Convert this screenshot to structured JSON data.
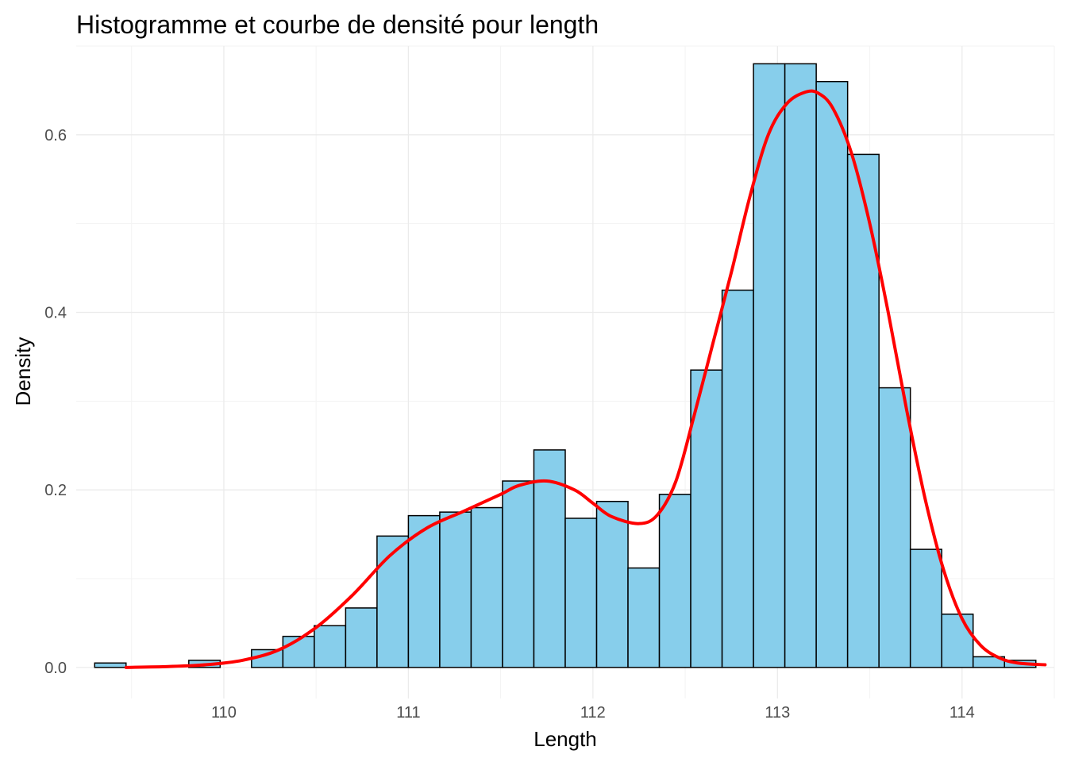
{
  "chart_data": {
    "type": "histogram",
    "title": "Histogramme et courbe de densité pour length",
    "xlabel": "Length",
    "ylabel": "Density",
    "xlim": [
      109.2,
      114.5
    ],
    "ylim": [
      -0.035,
      0.7
    ],
    "x_ticks": [
      110,
      111,
      112,
      113,
      114
    ],
    "x_tick_labels": [
      "110",
      "111",
      "112",
      "113",
      "114"
    ],
    "y_ticks": [
      0.0,
      0.2,
      0.4,
      0.6
    ],
    "y_tick_labels": [
      "0.0",
      "0.2",
      "0.4",
      "0.6"
    ],
    "grid": true,
    "colors": {
      "bar_fill": "#87ceeb",
      "bar_outline": "#000000",
      "density_line": "#ff0000"
    },
    "histogram": {
      "bin_start": 109.3,
      "bin_width": 0.17,
      "values": [
        0.005,
        0.0,
        0.0,
        0.008,
        0.0,
        0.02,
        0.035,
        0.047,
        0.067,
        0.148,
        0.171,
        0.175,
        0.18,
        0.21,
        0.245,
        0.168,
        0.187,
        0.112,
        0.195,
        0.335,
        0.425,
        0.68,
        0.68,
        0.66,
        0.578,
        0.315,
        0.133,
        0.06,
        0.012,
        0.008
      ]
    },
    "density_curve": {
      "name": "density",
      "x": [
        109.47,
        109.7,
        109.9,
        110.1,
        110.3,
        110.5,
        110.7,
        110.9,
        111.1,
        111.3,
        111.5,
        111.6,
        111.75,
        111.9,
        112.0,
        112.1,
        112.25,
        112.35,
        112.45,
        112.55,
        112.65,
        112.75,
        112.85,
        112.95,
        113.05,
        113.15,
        113.22,
        113.3,
        113.4,
        113.5,
        113.6,
        113.7,
        113.8,
        113.9,
        114.0,
        114.1,
        114.2,
        114.3,
        114.45
      ],
      "y": [
        0.0,
        0.001,
        0.003,
        0.008,
        0.02,
        0.045,
        0.082,
        0.126,
        0.157,
        0.176,
        0.195,
        0.205,
        0.21,
        0.2,
        0.185,
        0.17,
        0.162,
        0.172,
        0.21,
        0.285,
        0.365,
        0.445,
        0.53,
        0.6,
        0.635,
        0.648,
        0.647,
        0.63,
        0.58,
        0.5,
        0.4,
        0.29,
        0.19,
        0.11,
        0.055,
        0.025,
        0.011,
        0.005,
        0.003
      ]
    }
  }
}
